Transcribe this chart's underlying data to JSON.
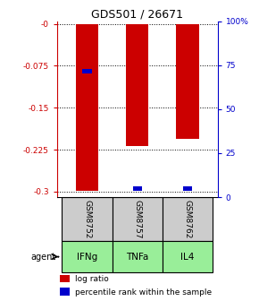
{
  "title": "GDS501 / 26671",
  "samples": [
    "GSM8752",
    "GSM8757",
    "GSM8762"
  ],
  "agents": [
    "IFNg",
    "TNFa",
    "IL4"
  ],
  "log_ratios": [
    -0.298,
    -0.218,
    -0.205
  ],
  "percentile_ranks": [
    0.72,
    0.02,
    0.02
  ],
  "ylim_left": [
    -0.31,
    0.005
  ],
  "yticks_left": [
    0,
    -0.075,
    -0.15,
    -0.225,
    -0.3
  ],
  "ytick_labels_left": [
    "-0",
    "-0.075",
    "-0.15",
    "-0.225",
    "-0.3"
  ],
  "yticks_right": [
    0,
    25,
    50,
    75,
    100
  ],
  "ytick_labels_right": [
    "0",
    "25",
    "50",
    "75",
    "100%"
  ],
  "bar_color": "#cc0000",
  "pct_color": "#0000cc",
  "agent_color": "#99ee99",
  "sample_bg_color": "#cccccc",
  "left_axis_color": "#cc0000",
  "right_axis_color": "#0000cc",
  "bar_width": 0.45,
  "pct_bar_width": 0.18
}
